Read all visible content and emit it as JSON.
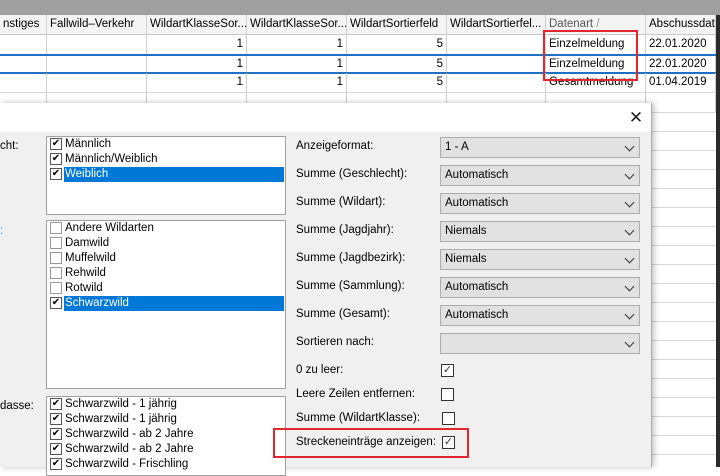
{
  "grid": {
    "headers": [
      "nstiges",
      "Fallwild–Verkehr",
      "WildartKlasseSor...",
      "WildartKlasseSor...",
      "WildartSortierfeld",
      "WildartSortierfel...",
      "Datenart",
      "Abschussdatu"
    ],
    "sort_indicator": "/",
    "rows": [
      [
        "",
        "",
        "1",
        "1",
        "5",
        "",
        "Einzelmeldung",
        "22.01.2020"
      ],
      [
        "",
        "",
        "1",
        "1",
        "5",
        "",
        "Einzelmeldung",
        "22.01.2020"
      ],
      [
        "",
        "",
        "1",
        "1",
        "5",
        "",
        "Gesamtmeldung",
        "01.04.2019"
      ],
      [
        "",
        "",
        "",
        "",
        "",
        "",
        "",
        ""
      ]
    ]
  },
  "dialog": {
    "close_icon": "close-icon",
    "left_labels": [
      "cht:",
      ":",
      "dasse:"
    ],
    "link_color": "#3399ff",
    "geschlecht": [
      {
        "label": "Männlich",
        "checked": true
      },
      {
        "label": "Männlich/Weiblich",
        "checked": true
      },
      {
        "label": "Weiblich",
        "checked": true,
        "selected": true
      }
    ],
    "wildart": [
      {
        "label": "Andere Wildarten",
        "checked": false
      },
      {
        "label": "Damwild",
        "checked": false
      },
      {
        "label": "Muffelwild",
        "checked": false
      },
      {
        "label": "Rehwild",
        "checked": false
      },
      {
        "label": "Rotwild",
        "checked": false
      },
      {
        "label": "Schwarzwild",
        "checked": true,
        "selected": true
      }
    ],
    "klasse": [
      {
        "label": "Schwarzwild - 1  jährig",
        "checked": true
      },
      {
        "label": "Schwarzwild - 1 jährig",
        "checked": true
      },
      {
        "label": "Schwarzwild - ab 2 Jahre",
        "checked": true
      },
      {
        "label": "Schwarzwild - ab 2 Jahre",
        "checked": true
      },
      {
        "label": "Schwarzwild - Frischling",
        "checked": true
      }
    ],
    "combos": [
      {
        "label": "Anzeigeformat:",
        "value": "1 - A"
      },
      {
        "label": "Summe (Geschlecht):",
        "value": "Automatisch"
      },
      {
        "label": "Summe (Wildart):",
        "value": "Automatisch"
      },
      {
        "label": "Summe (Jagdjahr):",
        "value": "Niemals"
      },
      {
        "label": "Summe (Jagdbezirk):",
        "value": "Niemals"
      },
      {
        "label": "Summe (Sammlung):",
        "value": "Automatisch"
      },
      {
        "label": "Summe (Gesamt):",
        "value": "Automatisch"
      },
      {
        "label": "Sortieren nach:",
        "value": ""
      }
    ],
    "checks": [
      {
        "label": "0 zu leer:",
        "checked": true
      },
      {
        "label": "Leere Zeilen entfernen:",
        "checked": false
      },
      {
        "label": "Summe (WildartKlasse):",
        "checked": false
      },
      {
        "label": "Streckeneinträge anzeigen:",
        "checked": true
      }
    ]
  },
  "colors": {
    "highlight": "#0078d7",
    "annotation": "#e3262e",
    "selected_row_border": "#1f6fc5"
  }
}
